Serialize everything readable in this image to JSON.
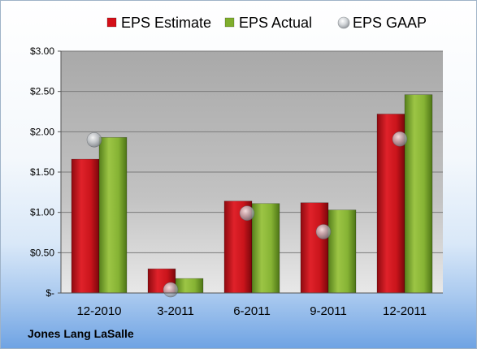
{
  "chart_data": {
    "type": "bar",
    "categories": [
      "12-2010",
      "3-2011",
      "6-2011",
      "9-2011",
      "12-2011"
    ],
    "series": [
      {
        "name": "EPS Estimate",
        "values": [
          1.66,
          0.3,
          1.14,
          1.12,
          2.22
        ],
        "color": "#d40f18"
      },
      {
        "name": "EPS Actual",
        "values": [
          1.93,
          0.18,
          1.11,
          1.03,
          2.46
        ],
        "color": "#7fae2d"
      },
      {
        "name": "EPS GAAP",
        "values": [
          1.9,
          0.04,
          0.99,
          0.76,
          1.91
        ],
        "color": "#b8bcc0",
        "marker": "sphere"
      }
    ],
    "yticks": [
      "$-",
      "$0.50",
      "$1.00",
      "$1.50",
      "$2.00",
      "$2.50",
      "$3.00"
    ],
    "ylim": [
      0,
      3
    ],
    "grid": true,
    "legend": "top"
  },
  "company": "Jones Lang LaSalle"
}
